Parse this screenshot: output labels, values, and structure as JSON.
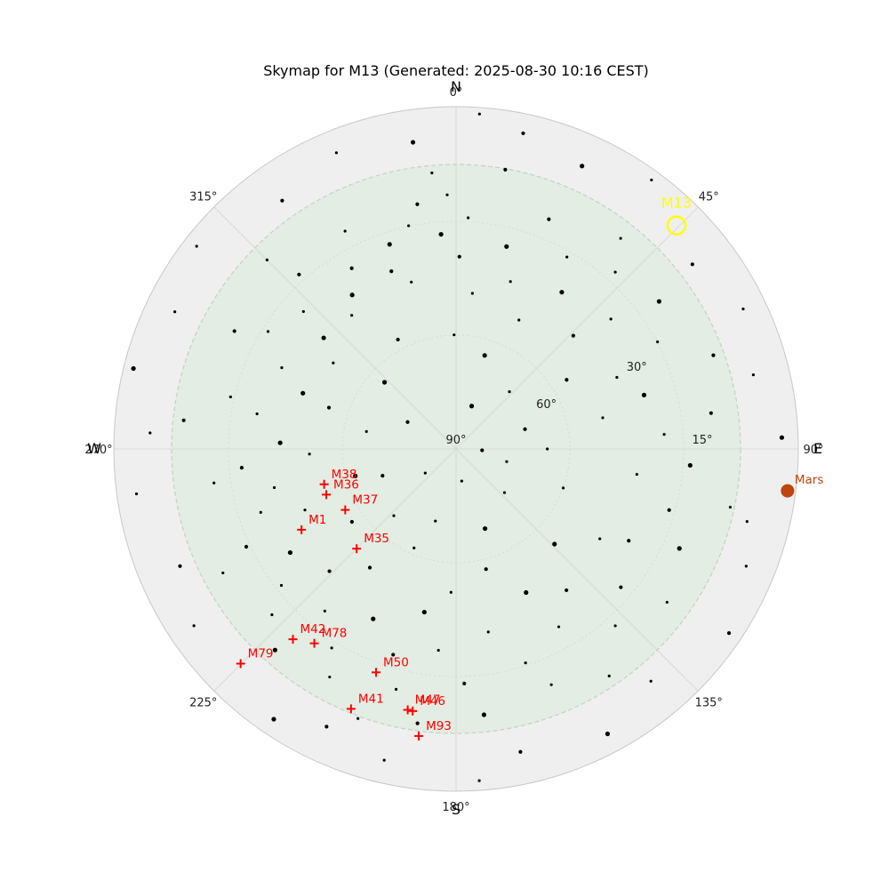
{
  "chart_data": {
    "type": "scatter",
    "projection": "polar alt-az, north up, azimuth clockwise, zenith at center",
    "title": "Skymap for M13 (Generated: 2025-08-30 10:16 CEST)",
    "compass": {
      "north": "N",
      "east": "E",
      "south": "S",
      "west": "W"
    },
    "azimuth_ticks": [
      "0°",
      "45°",
      "90°",
      "135°",
      "180°",
      "225°",
      "270°",
      "315°"
    ],
    "altitude_ticks": [
      "15°",
      "30°",
      "60°",
      "90°"
    ],
    "radial_range_deg": [
      -15,
      90
    ],
    "grid": true,
    "colors": {
      "background": "#efefef",
      "visible_region": "#e3ede3",
      "star": "#000000",
      "messier": "#ff0000",
      "target": "#ffff00",
      "planet": "#c0440e"
    },
    "target": {
      "name": "M13",
      "az": 44.6,
      "alt": -6.3
    },
    "planets": [
      {
        "name": "Mars",
        "az": 97.2,
        "alt": -12.5
      }
    ],
    "messier_objects": [
      {
        "name": "M38",
        "az": 255.0,
        "alt": 48.1
      },
      {
        "name": "M36",
        "az": 250.6,
        "alt": 47.8
      },
      {
        "name": "M37",
        "az": 241.2,
        "alt": 51.2
      },
      {
        "name": "M1",
        "az": 242.4,
        "alt": 36.5
      },
      {
        "name": "M35",
        "az": 224.9,
        "alt": 46.8
      },
      {
        "name": "M78",
        "az": 216.1,
        "alt": 16.2
      },
      {
        "name": "M42",
        "az": 220.6,
        "alt": 13.1
      },
      {
        "name": "M50",
        "az": 199.7,
        "alt": 17.2
      },
      {
        "name": "M47",
        "az": 190.5,
        "alt": 8.6
      },
      {
        "name": "M46",
        "az": 189.4,
        "alt": 8.5
      },
      {
        "name": "M41",
        "az": 202.0,
        "alt": 4.0
      },
      {
        "name": "M93",
        "az": 187.4,
        "alt": 1.2
      },
      {
        "name": "M79",
        "az": 225.1,
        "alt": -3.3
      }
    ],
    "stars": [
      {
        "az": 356,
        "alt": 24
      },
      {
        "az": 358,
        "alt": 12
      },
      {
        "az": 355,
        "alt": 5
      },
      {
        "az": 351,
        "alt": 14
      },
      {
        "az": 348,
        "alt": 20
      },
      {
        "az": 342,
        "alt": 24
      },
      {
        "az": 340,
        "alt": 32
      },
      {
        "az": 345,
        "alt": 37
      },
      {
        "az": 333,
        "alt": 15
      },
      {
        "az": 330,
        "alt": 26
      },
      {
        "az": 326,
        "alt": 33
      },
      {
        "az": 322,
        "alt": 38
      },
      {
        "az": 318,
        "alt": 18
      },
      {
        "az": 315,
        "alt": 8
      },
      {
        "az": 312,
        "alt": 27
      },
      {
        "az": 310,
        "alt": 37
      },
      {
        "az": 305,
        "alt": 44
      },
      {
        "az": 302,
        "alt": 22
      },
      {
        "az": 298,
        "alt": 13
      },
      {
        "az": 295,
        "alt": 31
      },
      {
        "az": 290,
        "alt": 40
      },
      {
        "az": 288,
        "alt": 49
      },
      {
        "az": 283,
        "alt": 19
      },
      {
        "az": 280,
        "alt": 28
      },
      {
        "az": 276,
        "alt": 6
      },
      {
        "az": 272,
        "alt": 36
      },
      {
        "az": 268,
        "alt": 45
      },
      {
        "az": 265,
        "alt": 24
      },
      {
        "az": 262,
        "alt": 15
      },
      {
        "az": 258,
        "alt": 33
      },
      {
        "az": 255,
        "alt": 58
      },
      {
        "az": 252,
        "alt": 27
      },
      {
        "az": 248,
        "alt": 40
      },
      {
        "az": 245,
        "alt": 19
      },
      {
        "az": 242,
        "alt": 9
      },
      {
        "az": 238,
        "alt": 30
      },
      {
        "az": 235,
        "alt": 51
      },
      {
        "az": 232,
        "alt": 22
      },
      {
        "az": 228,
        "alt": 14
      },
      {
        "az": 226,
        "alt": 36
      },
      {
        "az": 222,
        "alt": 7
      },
      {
        "az": 219,
        "alt": 26
      },
      {
        "az": 216,
        "alt": 45
      },
      {
        "az": 212,
        "alt": 18
      },
      {
        "az": 209,
        "alt": 10
      },
      {
        "az": 206,
        "alt": 32
      },
      {
        "az": 203,
        "alt": 57
      },
      {
        "az": 200,
        "alt": 2
      },
      {
        "az": 197,
        "alt": 24
      },
      {
        "az": 194,
        "alt": 14
      },
      {
        "az": 191,
        "alt": 39
      },
      {
        "az": 188,
        "alt": 5
      },
      {
        "az": 185,
        "alt": 28
      },
      {
        "az": 182,
        "alt": 46
      },
      {
        "az": 178,
        "alt": 18
      },
      {
        "az": 174,
        "alt": 8
      },
      {
        "az": 170,
        "alt": 33
      },
      {
        "az": 166,
        "alt": 52
      },
      {
        "az": 162,
        "alt": 21
      },
      {
        "az": 158,
        "alt": 12
      },
      {
        "az": 154,
        "alt": 41
      },
      {
        "az": 150,
        "alt": 27
      },
      {
        "az": 146,
        "alt": 6
      },
      {
        "az": 142,
        "alt": 35
      },
      {
        "az": 138,
        "alt": 17
      },
      {
        "az": 134,
        "alt": 48
      },
      {
        "az": 130,
        "alt": 24
      },
      {
        "az": 126,
        "alt": 10
      },
      {
        "az": 122,
        "alt": 38
      },
      {
        "az": 118,
        "alt": 30
      },
      {
        "az": 114,
        "alt": 15
      },
      {
        "az": 110,
        "alt": 55
      },
      {
        "az": 106,
        "alt": 22
      },
      {
        "az": 102,
        "alt": 4
      },
      {
        "az": 98,
        "alt": 34
      },
      {
        "az": 94,
        "alt": 18
      },
      {
        "az": 90,
        "alt": 62
      },
      {
        "az": 86,
        "alt": 26
      },
      {
        "az": 82,
        "alt": 11
      },
      {
        "az": 78,
        "alt": 44
      },
      {
        "az": 74,
        "alt": 30
      },
      {
        "az": 70,
        "alt": 6
      },
      {
        "az": 66,
        "alt": 36
      },
      {
        "az": 62,
        "alt": 20
      },
      {
        "az": 58,
        "alt": 50
      },
      {
        "az": 54,
        "alt": 13
      },
      {
        "az": 50,
        "alt": 28
      },
      {
        "az": 46,
        "alt": 40
      },
      {
        "az": 42,
        "alt": 17
      },
      {
        "az": 38,
        "alt": 8
      },
      {
        "az": 34,
        "alt": 32
      },
      {
        "az": 30,
        "alt": 22
      },
      {
        "az": 26,
        "alt": 46
      },
      {
        "az": 22,
        "alt": 14
      },
      {
        "az": 18,
        "alt": 36
      },
      {
        "az": 14,
        "alt": 26
      },
      {
        "az": 10,
        "alt": 3
      },
      {
        "az": 6,
        "alt": 42
      },
      {
        "az": 3,
        "alt": 19
      },
      {
        "az": 1,
        "alt": 31
      },
      {
        "az": 352,
        "alt": -5
      },
      {
        "az": 338,
        "alt": -8
      },
      {
        "az": 325,
        "alt": -3
      },
      {
        "az": 308,
        "alt": -11
      },
      {
        "az": 296,
        "alt": -6
      },
      {
        "az": 284,
        "alt": -12
      },
      {
        "az": 273,
        "alt": -4
      },
      {
        "az": 262,
        "alt": -9
      },
      {
        "az": 247,
        "alt": -2
      },
      {
        "az": 236,
        "alt": -7
      },
      {
        "az": 214,
        "alt": -10
      },
      {
        "az": 205,
        "alt": -4
      },
      {
        "az": 193,
        "alt": -8
      },
      {
        "az": 176,
        "alt": -12
      },
      {
        "az": 168,
        "alt": -5
      },
      {
        "az": 152,
        "alt": -9
      },
      {
        "az": 140,
        "alt": -3
      },
      {
        "az": 124,
        "alt": -11
      },
      {
        "az": 112,
        "alt": -6
      },
      {
        "az": 104,
        "alt": -2
      },
      {
        "az": 88,
        "alt": -10
      },
      {
        "az": 76,
        "alt": -4
      },
      {
        "az": 64,
        "alt": -8
      },
      {
        "az": 52,
        "alt": -2
      },
      {
        "az": 36,
        "alt": -12
      },
      {
        "az": 24,
        "alt": -5
      },
      {
        "az": 12,
        "alt": -9
      },
      {
        "az": 4,
        "alt": -13
      },
      {
        "az": 359,
        "alt": 55
      },
      {
        "az": 332,
        "alt": 52
      },
      {
        "az": 313,
        "alt": 60
      },
      {
        "az": 281,
        "alt": 62
      },
      {
        "az": 250,
        "alt": 66
      },
      {
        "az": 223,
        "alt": 62
      },
      {
        "az": 196,
        "alt": 67
      },
      {
        "az": 160,
        "alt": 64
      },
      {
        "az": 132,
        "alt": 70
      },
      {
        "az": 104,
        "alt": 74
      },
      {
        "az": 74,
        "alt": 68
      },
      {
        "az": 43,
        "alt": 66
      },
      {
        "az": 17,
        "alt": 60
      },
      {
        "az": 299,
        "alt": 73
      },
      {
        "az": 232,
        "alt": 78
      },
      {
        "az": 170,
        "alt": 80
      },
      {
        "az": 93,
        "alt": 82
      },
      {
        "az": 20,
        "alt": 76
      }
    ]
  }
}
